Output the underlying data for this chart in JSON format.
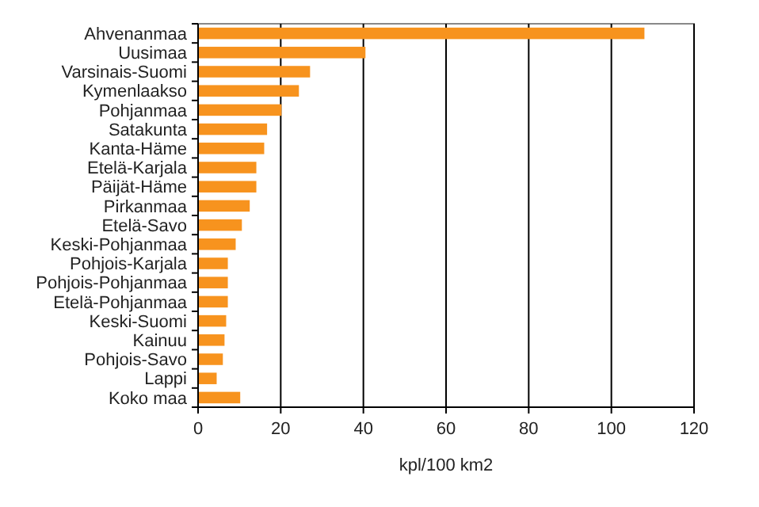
{
  "chart_data": {
    "type": "bar",
    "orientation": "horizontal",
    "xlabel": "kpl/100 km2",
    "categories": [
      "Ahvenanmaa",
      "Uusimaa",
      "Varsinais-Suomi",
      "Kymenlaakso",
      "Pohjanmaa",
      "Satakunta",
      "Kanta-Häme",
      "Etelä-Karjala",
      "Päijät-Häme",
      "Pirkanmaa",
      "Etelä-Savo",
      "Keski-Pohjanmaa",
      "Pohjois-Karjala",
      "Pohjois-Pohjanmaa",
      "Etelä-Pohjanmaa",
      "Keski-Suomi",
      "Kainuu",
      "Pohjois-Savo",
      "Lappi",
      "Koko maa"
    ],
    "values": [
      108,
      40.5,
      27.1,
      24.4,
      20.2,
      16.7,
      16,
      14.1,
      14.1,
      12.5,
      10.6,
      9.1,
      7.2,
      7.2,
      7.2,
      6.8,
      6.4,
      6,
      4.5,
      10.2
    ],
    "color": "#f7931e",
    "xlim": [
      0,
      120
    ],
    "xticks": [
      0,
      20,
      40,
      60,
      80,
      100,
      120
    ],
    "grid": "x"
  }
}
